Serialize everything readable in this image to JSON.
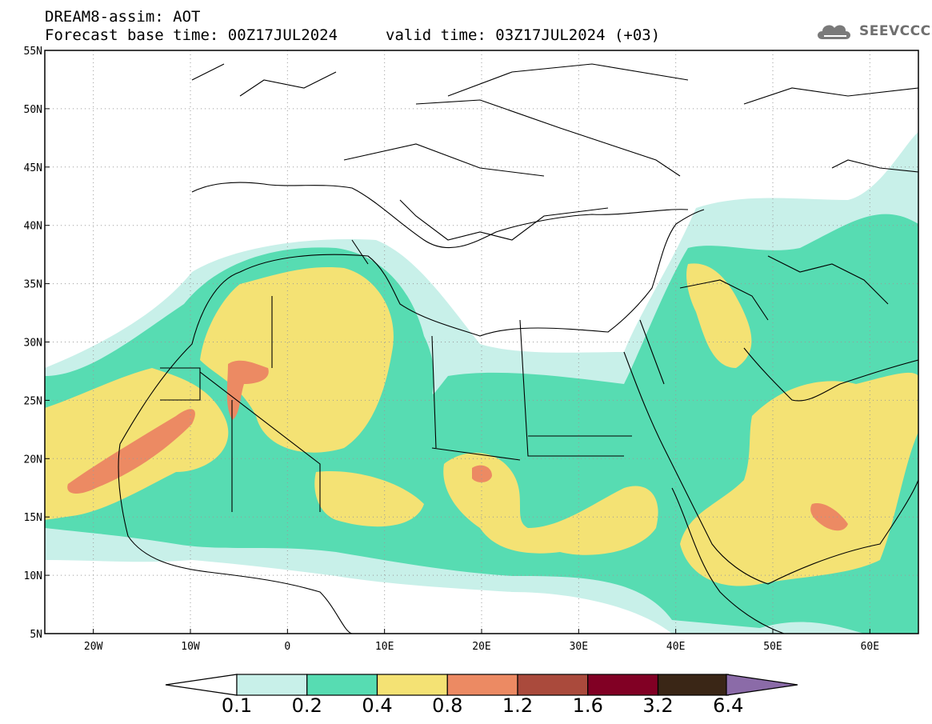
{
  "header": {
    "model_line": "DREAM8-assim: AOT",
    "base_time_line": "Forecast base time: 00Z17JUL2024",
    "valid_time_line": "valid time: 03Z17JUL2024 (+03)",
    "logo_text": "SEEVCCC"
  },
  "map": {
    "lat_labels": [
      "55N",
      "50N",
      "45N",
      "40N",
      "35N",
      "30N",
      "25N",
      "20N",
      "15N",
      "10N",
      "5N"
    ],
    "lon_labels": [
      "20W",
      "10W",
      "0",
      "10E",
      "20E",
      "30E",
      "40E",
      "50E",
      "60E"
    ],
    "lon_range": [
      -25,
      65
    ],
    "lat_range": [
      5,
      55
    ]
  },
  "colorbar": {
    "ticks": [
      "0.1",
      "0.2",
      "0.4",
      "0.8",
      "1.2",
      "1.6",
      "3.2",
      "6.4"
    ],
    "colors": [
      "#c8f0e9",
      "#57dcb2",
      "#f4e274",
      "#ec8a63",
      "#aa4a3c",
      "#810024",
      "#3a2616",
      "#8b6ba8"
    ]
  }
}
